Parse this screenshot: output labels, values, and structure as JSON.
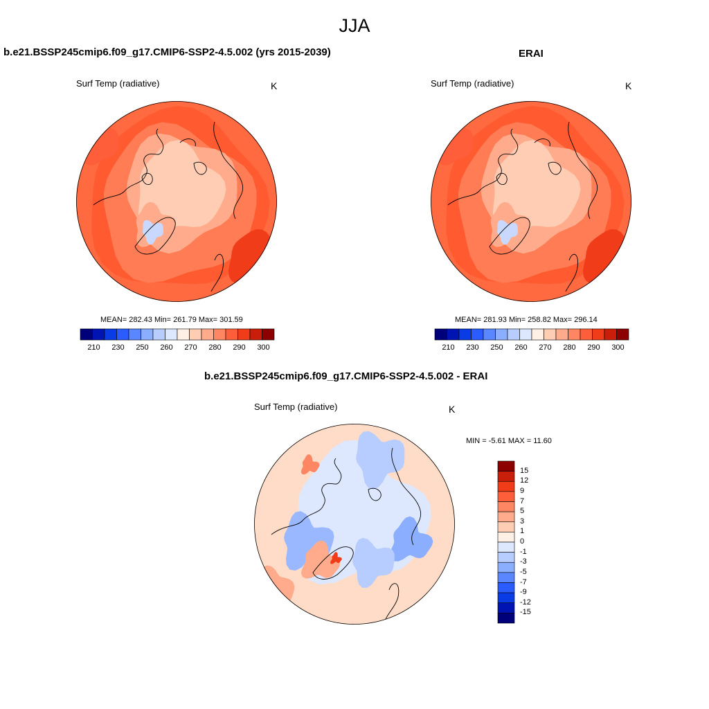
{
  "page_title": "JJA",
  "panels": [
    {
      "title": "b.e21.BSSP245cmip6.f09_g17.CMIP6-SSP2-4.5.002 (yrs 2015-2039)",
      "variable": "Surf Temp (radiative)",
      "units": "K",
      "stats": "MEAN= 282.43  Min= 261.79  Max= 301.59"
    },
    {
      "title": "ERAI",
      "variable": "Surf Temp (radiative)",
      "units": "K",
      "stats": "MEAN= 281.93  Min= 258.82  Max= 296.14"
    },
    {
      "title": "b.e21.BSSP245cmip6.f09_g17.CMIP6-SSP2-4.5.002 - ERAI",
      "variable": "Surf Temp (radiative)",
      "units": "K",
      "stats": "MIN =  -5.61 MAX =  11.60"
    }
  ],
  "abs_colorbar": {
    "colors": [
      "#00007a",
      "#0014b4",
      "#0a3ce6",
      "#2a5cff",
      "#5a86ff",
      "#8caeff",
      "#b8cdff",
      "#dde8ff",
      "#fff0e6",
      "#ffcdb4",
      "#ffab8c",
      "#ff8663",
      "#ff5e3a",
      "#f03c18",
      "#c81e0a",
      "#8c0000"
    ],
    "ticks": [
      "210",
      "230",
      "250",
      "260",
      "270",
      "280",
      "290",
      "300"
    ]
  },
  "diff_colorbar": {
    "colors": [
      "#8c0000",
      "#c81e0a",
      "#f03c18",
      "#ff5e3a",
      "#ff8663",
      "#ffab8c",
      "#ffcdb4",
      "#fff0e6",
      "#dde8ff",
      "#b8cdff",
      "#8caeff",
      "#5a86ff",
      "#2a5cff",
      "#0a3ce6",
      "#0014b4",
      "#00007a"
    ],
    "ticks": [
      "15",
      "12",
      "9",
      "7",
      "5",
      "3",
      "1",
      "0",
      "-1",
      "-3",
      "-5",
      "-7",
      "-9",
      "-12",
      "-15"
    ]
  }
}
